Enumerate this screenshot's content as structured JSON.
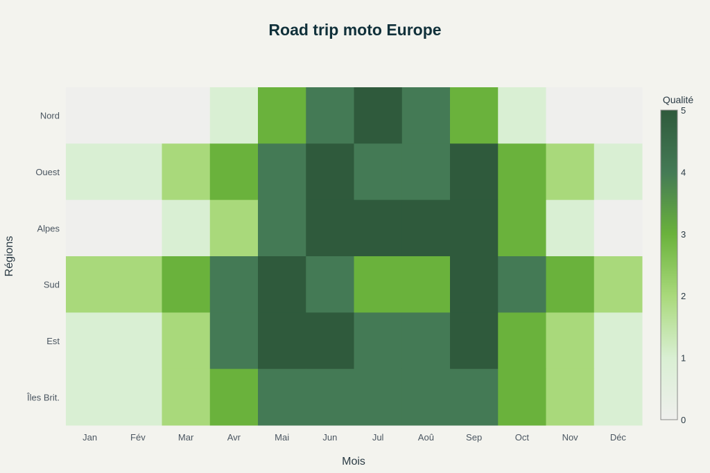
{
  "chart_data": {
    "type": "heatmap",
    "title": "Road trip moto Europe",
    "xlabel": "Mois",
    "ylabel": "Régions",
    "x": [
      "Jan",
      "Fév",
      "Mar",
      "Avr",
      "Mai",
      "Jun",
      "Jul",
      "Aoû",
      "Sep",
      "Oct",
      "Nov",
      "Déc"
    ],
    "y": [
      "Nord",
      "Ouest",
      "Alpes",
      "Sud",
      "Est",
      "Îles Brit."
    ],
    "z": [
      [
        0,
        0,
        0,
        1,
        3,
        4,
        5,
        4,
        3,
        1,
        0,
        0
      ],
      [
        1,
        1,
        2,
        3,
        4,
        5,
        4,
        4,
        5,
        3,
        2,
        1
      ],
      [
        0,
        0,
        1,
        2,
        4,
        5,
        5,
        5,
        5,
        3,
        1,
        0
      ],
      [
        2,
        2,
        3,
        4,
        5,
        4,
        3,
        3,
        5,
        4,
        3,
        2
      ],
      [
        1,
        1,
        2,
        4,
        5,
        5,
        4,
        4,
        5,
        3,
        2,
        1
      ],
      [
        1,
        1,
        2,
        3,
        4,
        4,
        4,
        4,
        4,
        3,
        2,
        1
      ]
    ],
    "colorbar": {
      "title": "Qualité",
      "range": [
        0,
        5
      ],
      "ticks": [
        "0",
        "1",
        "2",
        "3",
        "4",
        "5"
      ]
    },
    "colorscale": [
      "#efefed",
      "#d9efd3",
      "#a9d97b",
      "#6ab23c",
      "#447a55",
      "#2f5a3c"
    ]
  }
}
